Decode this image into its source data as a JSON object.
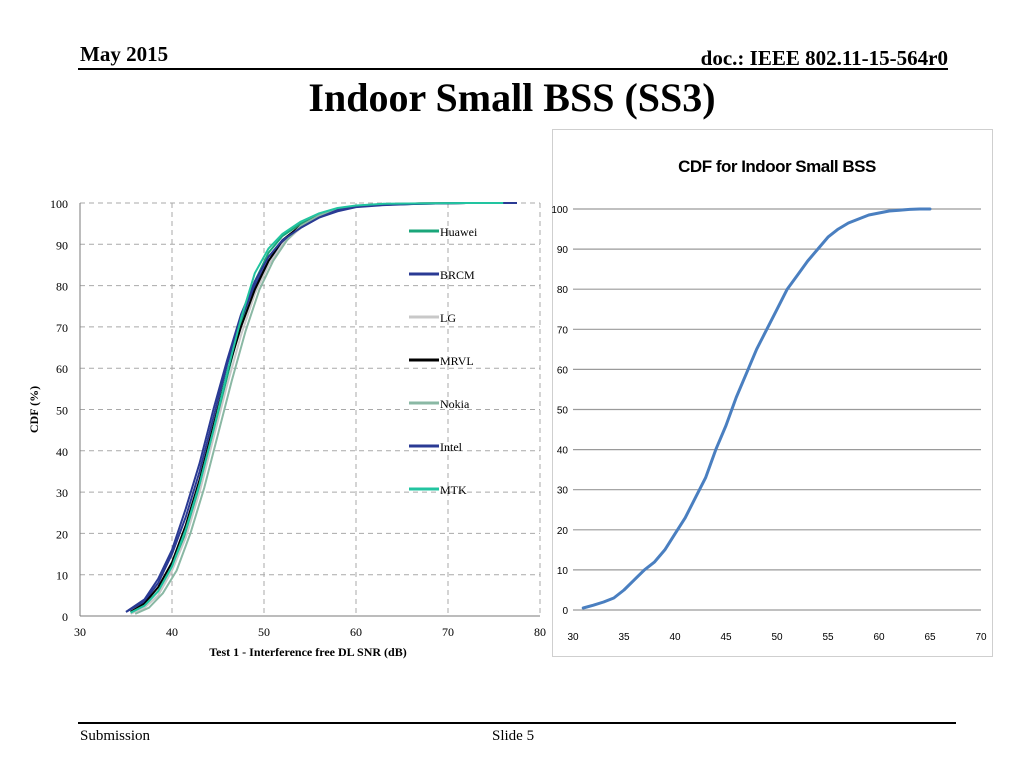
{
  "header": {
    "date": "May 2015",
    "doc": "doc.: IEEE 802.11-15-564r0"
  },
  "title": "Indoor Small BSS (SS3)",
  "footer": {
    "submission": "Submission",
    "slide": "Slide 5"
  },
  "colors": {
    "Huawei": "#1aa67a",
    "BRCM": "#2a3a94",
    "LG": "#c8c8c8",
    "MRVL": "#000000",
    "Nokia": "#8ab8a4",
    "Intel": "#2a3a94",
    "MTK": "#22c4a0",
    "right_series": "#4a7fc0"
  },
  "chart_data": [
    {
      "type": "line",
      "title": "",
      "xlabel": "Test 1 - Interference free  DL SNR (dB)",
      "ylabel": "CDF (%)",
      "xlim": [
        30,
        80
      ],
      "ylim": [
        0,
        100
      ],
      "xticks": [
        30,
        40,
        50,
        60,
        70,
        80
      ],
      "yticks": [
        0,
        10,
        20,
        30,
        40,
        50,
        60,
        70,
        80,
        90,
        100
      ],
      "grid": true,
      "legend_position": "right",
      "series": [
        {
          "name": "Huawei",
          "x": [
            35.5,
            37,
            38.5,
            40,
            41.5,
            43,
            44.5,
            46,
            47.5,
            49,
            50.5,
            52,
            54,
            56,
            58,
            60,
            63,
            67,
            72,
            77
          ],
          "y": [
            1,
            2.5,
            6,
            12,
            20,
            31,
            44,
            58,
            71,
            81,
            88,
            92,
            95,
            97,
            98.5,
            99.2,
            99.6,
            99.8,
            100,
            100
          ]
        },
        {
          "name": "BRCM",
          "x": [
            35,
            37,
            38.5,
            40,
            41.5,
            43,
            44.5,
            46,
            47.5,
            49,
            50.5,
            52,
            54,
            56,
            58,
            60,
            63,
            67,
            72,
            77.5
          ],
          "y": [
            1,
            3.5,
            8,
            15,
            24,
            35,
            48,
            61,
            72,
            80,
            86,
            90.5,
            94,
            96.5,
            98,
            99,
            99.5,
            99.8,
            100,
            100
          ]
        },
        {
          "name": "LG",
          "x": [
            35.5,
            37,
            38.5,
            40,
            41.5,
            43,
            44.5,
            46,
            47.5,
            49,
            50.5,
            52,
            54,
            56,
            58,
            60,
            63,
            67,
            72,
            76
          ],
          "y": [
            0.5,
            2,
            5,
            11,
            19,
            30,
            43,
            56,
            68,
            78,
            85,
            90,
            94,
            97,
            98.5,
            99.3,
            99.7,
            99.9,
            100,
            100
          ]
        },
        {
          "name": "MRVL",
          "x": [
            35.5,
            37,
            38.5,
            40,
            41.5,
            43,
            44.5,
            46,
            47.5,
            49,
            50.5,
            52,
            54,
            56,
            58,
            60,
            63,
            67,
            72,
            76
          ],
          "y": [
            1,
            3,
            7,
            13,
            22,
            33,
            46,
            59,
            70,
            79,
            86,
            91,
            94.5,
            97,
            98.5,
            99.3,
            99.7,
            99.9,
            100,
            100
          ]
        },
        {
          "name": "Nokia",
          "x": [
            36,
            37.5,
            39,
            40.5,
            42,
            43.5,
            45,
            46.5,
            48,
            49.5,
            51,
            52.5,
            54,
            56,
            58,
            60,
            63,
            67,
            72,
            76
          ],
          "y": [
            0.5,
            2,
            5.5,
            11,
            20,
            31,
            44,
            57,
            69,
            79,
            86,
            91,
            94.5,
            97,
            98.5,
            99.3,
            99.7,
            99.9,
            100,
            100
          ]
        },
        {
          "name": "Intel",
          "x": [
            35,
            37,
            38.5,
            40,
            41.5,
            43,
            44.5,
            46,
            47.5,
            49,
            50.5,
            52,
            54,
            56,
            58,
            60,
            63,
            67,
            72,
            77.5
          ],
          "y": [
            1,
            4,
            9,
            16,
            26,
            37,
            50,
            62,
            73,
            81,
            87,
            91,
            94,
            96.5,
            98.3,
            99.1,
            99.6,
            99.8,
            100,
            100
          ]
        },
        {
          "name": "MTK",
          "x": [
            35.5,
            37,
            38.5,
            40,
            41.5,
            43,
            44.5,
            46,
            47.5,
            49,
            50.5,
            52,
            54,
            56,
            58,
            60,
            63,
            67,
            72,
            76
          ],
          "y": [
            0.8,
            2.5,
            6,
            12,
            21,
            32,
            45,
            59,
            72,
            83,
            89,
            92.5,
            95.5,
            97.5,
            98.8,
            99.4,
            99.8,
            99.9,
            100,
            100
          ]
        }
      ],
      "legend_labels": [
        "Huawei",
        "BRCM",
        "LG",
        "MRVL",
        "Nokia",
        "Intel",
        "MTK"
      ]
    },
    {
      "type": "line",
      "title": "CDF for Indoor Small BSS",
      "xlabel": "",
      "ylabel": "",
      "xlim": [
        30,
        70
      ],
      "ylim": [
        0,
        100
      ],
      "xticks": [
        30,
        35,
        40,
        45,
        50,
        55,
        60,
        65,
        70
      ],
      "yticks": [
        0,
        10,
        20,
        30,
        40,
        50,
        60,
        70,
        80,
        90,
        100
      ],
      "grid": true,
      "legend_position": "none",
      "series": [
        {
          "x": [
            31,
            32,
            33,
            34,
            35,
            36,
            37,
            38,
            39,
            40,
            41,
            42,
            43,
            44,
            45,
            46,
            47,
            48,
            49,
            50,
            51,
            52,
            53,
            54,
            55,
            56,
            57,
            58,
            59,
            60,
            61,
            62,
            63,
            64,
            65
          ],
          "y": [
            0.5,
            1.2,
            2,
            3,
            5,
            7.5,
            10,
            12,
            15,
            19,
            23,
            28,
            33,
            40,
            46,
            53,
            59,
            65,
            70,
            75,
            80,
            83.5,
            87,
            90,
            93,
            95,
            96.5,
            97.5,
            98.5,
            99,
            99.5,
            99.7,
            99.9,
            100,
            100
          ]
        }
      ]
    }
  ]
}
